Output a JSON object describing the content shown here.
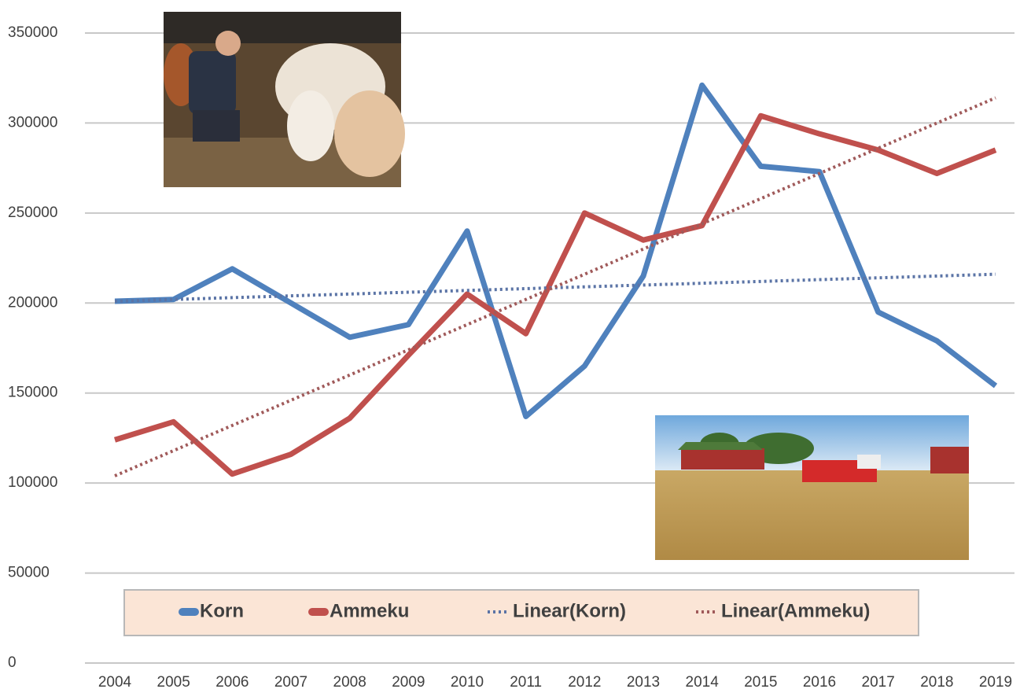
{
  "chart_data": {
    "type": "line",
    "x": [
      2004,
      2005,
      2006,
      2007,
      2008,
      2009,
      2010,
      2011,
      2012,
      2013,
      2014,
      2015,
      2016,
      2017,
      2018,
      2019
    ],
    "series": [
      {
        "name": "Korn",
        "color": "#4f81bd",
        "style": "solid",
        "values": [
          201000,
          202000,
          219000,
          200000,
          181000,
          188000,
          240000,
          137000,
          165000,
          215000,
          321000,
          276000,
          273000,
          195000,
          179000,
          154000
        ]
      },
      {
        "name": "Ammeku",
        "color": "#c0504d",
        "style": "solid",
        "values": [
          124000,
          134000,
          105000,
          116000,
          136000,
          171000,
          205000,
          183000,
          250000,
          235000,
          243000,
          304000,
          294000,
          285000,
          272000,
          285000
        ]
      },
      {
        "name": "Linear(Korn)",
        "color": "#5b74a6",
        "style": "dotted",
        "values": [
          201000,
          202000,
          203000,
          204000,
          205000,
          206000,
          207000,
          208000,
          209000,
          210000,
          211000,
          212000,
          213000,
          214000,
          215000,
          216000
        ]
      },
      {
        "name": "Linear(Ammeku)",
        "color": "#a05a5a",
        "style": "dotted",
        "values": [
          104000,
          118000,
          132000,
          146000,
          160000,
          174000,
          188000,
          202000,
          216000,
          230000,
          244000,
          258000,
          272000,
          286000,
          300000,
          314000
        ]
      }
    ],
    "xlim": [
      2004,
      2019
    ],
    "ylim": [
      0,
      350000
    ],
    "yticks": [
      0,
      50000,
      100000,
      150000,
      200000,
      250000,
      300000,
      350000
    ],
    "grid": true
  }
}
